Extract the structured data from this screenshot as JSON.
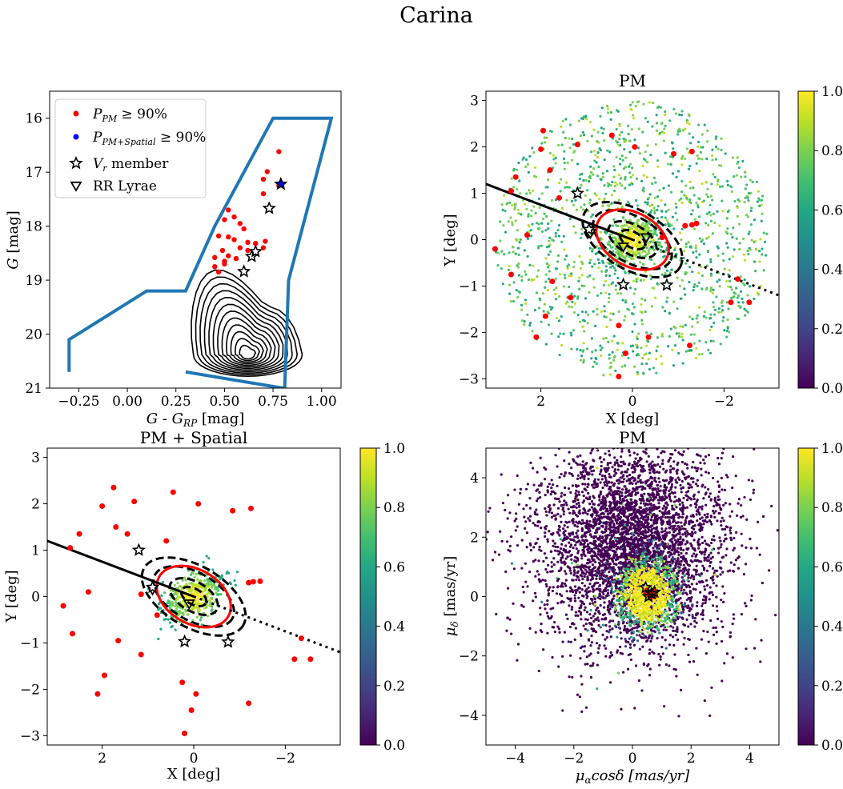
{
  "figure": {
    "title": "Carina"
  },
  "colorbar": {
    "ticks": [
      "0.0",
      "0.2",
      "0.4",
      "0.6",
      "0.8",
      "1.0"
    ],
    "colormap": "viridis"
  },
  "colors": {
    "cmd_box": "#1f77b4",
    "member": "#ff0000",
    "member_spatial": "#0000ff",
    "ellipse": "#ff0000",
    "line": "#000000"
  },
  "chart_data": [
    {
      "type": "scatter",
      "panel": "cmd",
      "title": "",
      "xlabel_main": "G - G",
      "xlabel_sub": "RP",
      "xlabel_unit": " [mag]",
      "ylabel_main": "G",
      "ylabel_unit": " [mag]",
      "xlim": [
        -0.4,
        1.1
      ],
      "ylim": [
        21,
        15.5
      ],
      "xticks": [
        -0.25,
        0.0,
        0.25,
        0.5,
        0.75,
        1.0
      ],
      "xtick_labels": [
        "−0.25",
        "0.00",
        "0.25",
        "0.50",
        "0.75",
        "1.00"
      ],
      "yticks": [
        16,
        17,
        18,
        19,
        20,
        21
      ],
      "ytick_labels": [
        "16",
        "17",
        "18",
        "19",
        "20",
        "21"
      ],
      "legend": [
        {
          "label": "P",
          "sub": "PM",
          "tail": " ≥ 90%",
          "marker": "dot",
          "color": "#ff0000"
        },
        {
          "label": "P",
          "sub": "PM+Spatial",
          "tail": " ≥ 90%",
          "marker": "dot",
          "color": "#0000ff"
        },
        {
          "label": "V",
          "sub": "r",
          "tail": " member",
          "marker": "star"
        },
        {
          "label": "RR Lyrae",
          "sub": "",
          "tail": "",
          "marker": "triangle"
        }
      ],
      "selection_box": [
        [
          -0.3,
          20.7
        ],
        [
          -0.3,
          20.1
        ],
        [
          0.1,
          19.2
        ],
        [
          0.3,
          19.2
        ],
        [
          0.45,
          18.0
        ],
        [
          0.75,
          16.0
        ],
        [
          1.05,
          16.0
        ],
        [
          0.83,
          19.0
        ],
        [
          0.81,
          21.0
        ],
        [
          0.8,
          21.0
        ],
        [
          0.3,
          20.7
        ]
      ],
      "members": [
        [
          0.78,
          16.62
        ],
        [
          0.72,
          16.99
        ],
        [
          0.7,
          17.13
        ],
        [
          0.78,
          17.25
        ],
        [
          0.7,
          17.4
        ],
        [
          0.52,
          17.7
        ],
        [
          0.55,
          17.83
        ],
        [
          0.58,
          17.95
        ],
        [
          0.5,
          17.88
        ],
        [
          0.6,
          18.05
        ],
        [
          0.47,
          18.18
        ],
        [
          0.52,
          18.2
        ],
        [
          0.62,
          18.3
        ],
        [
          0.55,
          18.25
        ],
        [
          0.58,
          18.4
        ],
        [
          0.66,
          18.32
        ],
        [
          0.71,
          18.28
        ],
        [
          0.49,
          18.45
        ],
        [
          0.45,
          18.58
        ],
        [
          0.52,
          18.55
        ],
        [
          0.56,
          18.6
        ],
        [
          0.5,
          18.65
        ],
        [
          0.45,
          18.75
        ],
        [
          0.5,
          18.7
        ],
        [
          0.47,
          18.85
        ],
        [
          0.62,
          18.45
        ],
        [
          0.7,
          18.4
        ]
      ],
      "vr_members": [
        [
          0.79,
          17.22
        ],
        [
          0.73,
          17.67
        ],
        [
          0.66,
          18.47
        ],
        [
          0.64,
          18.56
        ],
        [
          0.6,
          18.84
        ]
      ],
      "vr_member_fills": [
        "#0000ff",
        "none",
        "none",
        "none",
        "none"
      ],
      "density_contour_levels": 12,
      "density_center": [
        0.62,
        20.38
      ]
    },
    {
      "type": "scatter",
      "panel": "pm_spatial_sky",
      "title": "PM",
      "xlabel": "X [deg]",
      "ylabel": "Y [deg]",
      "xlim": [
        3.2,
        -3.2
      ],
      "ylim": [
        -3.2,
        3.2
      ],
      "xticks": [
        2,
        0,
        -2
      ],
      "xtick_labels": [
        "2",
        "0",
        "−2"
      ],
      "yticks": [
        -3,
        -2,
        -1,
        0,
        1,
        2,
        3
      ],
      "ytick_labels": [
        "−3",
        "−2",
        "−1",
        "0",
        "1",
        "2",
        "3"
      ],
      "field_radius_deg": 3.0,
      "n_field_points": 1300,
      "color_scale": [
        0,
        1
      ],
      "members": [
        [
          2.0,
          1.95
        ],
        [
          1.95,
          2.35
        ],
        [
          1.8,
          1.5
        ],
        [
          1.2,
          2.05
        ],
        [
          0.45,
          2.25
        ],
        [
          -0.05,
          2.0
        ],
        [
          -0.9,
          1.85
        ],
        [
          -1.3,
          1.9
        ],
        [
          2.65,
          1.05
        ],
        [
          2.55,
          1.35
        ],
        [
          2.3,
          0.1
        ],
        [
          3.0,
          -0.2
        ],
        [
          2.65,
          -0.75
        ],
        [
          1.75,
          -0.9
        ],
        [
          1.9,
          -1.65
        ],
        [
          2.1,
          -2.1
        ],
        [
          1.35,
          -1.25
        ],
        [
          0.3,
          -1.85
        ],
        [
          0.15,
          -2.45
        ],
        [
          0.3,
          -2.95
        ],
        [
          -0.35,
          -2.1
        ],
        [
          -1.25,
          -2.28
        ],
        [
          -2.15,
          -1.35
        ],
        [
          -2.3,
          -0.85
        ],
        [
          -2.55,
          -1.35
        ],
        [
          -1.15,
          0.3
        ],
        [
          -1.3,
          0.32
        ],
        [
          -1.4,
          0.35
        ],
        [
          1.6,
          0.9
        ],
        [
          -0.65,
          0.05
        ]
      ],
      "vr_members": [
        [
          1.2,
          1.0
        ],
        [
          0.95,
          0.22
        ],
        [
          0.2,
          -0.97
        ],
        [
          -0.75,
          -0.98
        ]
      ],
      "rr_lyrae": [
        [
          0.92,
          0.14
        ],
        [
          0.2,
          -0.15
        ],
        [
          -0.3,
          0.05
        ]
      ],
      "ellipses": [
        {
          "a": 1.2,
          "b": 0.65,
          "pa_deg": -30,
          "style": "dashed",
          "color": "#000000"
        },
        {
          "a": 0.95,
          "b": 0.5,
          "pa_deg": -30,
          "style": "dashed",
          "color": "#000000"
        },
        {
          "a": 0.85,
          "b": 0.58,
          "pa_deg": -30,
          "style": "solid",
          "color": "#ff0000"
        },
        {
          "a": 0.58,
          "b": 0.32,
          "pa_deg": -30,
          "style": "dashed",
          "color": "#000000"
        },
        {
          "a": 0.3,
          "b": 0.17,
          "pa_deg": -30,
          "style": "dashed",
          "color": "#000000"
        }
      ],
      "trail_solid": [
        [
          3.2,
          1.2
        ],
        [
          0.0,
          0.0
        ]
      ],
      "trail_dotted": [
        [
          0.0,
          0.0
        ],
        [
          -3.2,
          -1.2
        ]
      ]
    },
    {
      "type": "scatter",
      "panel": "pm_spatial_combined",
      "title": "PM + Spatial",
      "xlabel": "X [deg]",
      "ylabel": "Y [deg]",
      "xlim": [
        3.2,
        -3.2
      ],
      "ylim": [
        -3.2,
        3.2
      ],
      "xticks": [
        2,
        0,
        -2
      ],
      "xtick_labels": [
        "2",
        "0",
        "−2"
      ],
      "yticks": [
        -3,
        -2,
        -1,
        0,
        1,
        2,
        3
      ],
      "ytick_labels": [
        "−3",
        "−2",
        "−1",
        "0",
        "1",
        "2",
        "3"
      ],
      "color_scale": [
        0,
        1
      ],
      "members": [
        [
          1.75,
          2.35
        ],
        [
          2.0,
          1.95
        ],
        [
          1.3,
          2.05
        ],
        [
          0.45,
          2.25
        ],
        [
          -0.1,
          2.0
        ],
        [
          -0.85,
          1.85
        ],
        [
          -1.25,
          1.9
        ],
        [
          1.7,
          1.5
        ],
        [
          1.45,
          1.35
        ],
        [
          0.6,
          1.2
        ],
        [
          2.5,
          1.35
        ],
        [
          2.7,
          1.05
        ],
        [
          2.3,
          0.1
        ],
        [
          2.85,
          -0.2
        ],
        [
          2.65,
          -0.8
        ],
        [
          1.65,
          -0.95
        ],
        [
          1.95,
          -1.7
        ],
        [
          2.1,
          -2.1
        ],
        [
          1.15,
          -1.25
        ],
        [
          0.25,
          -1.85
        ],
        [
          0.05,
          -2.45
        ],
        [
          0.2,
          -2.95
        ],
        [
          -0.05,
          -2.1
        ],
        [
          -1.2,
          -2.3
        ],
        [
          -2.2,
          -1.35
        ],
        [
          -2.35,
          -0.9
        ],
        [
          -2.55,
          -1.35
        ],
        [
          -1.2,
          0.3
        ],
        [
          -1.3,
          0.32
        ],
        [
          -1.45,
          0.33
        ],
        [
          1.15,
          0.05
        ],
        [
          0.8,
          -0.4
        ]
      ],
      "vr_members": [
        [
          1.2,
          1.0
        ],
        [
          0.9,
          0.2
        ],
        [
          0.2,
          -0.97
        ],
        [
          -0.75,
          -0.98
        ]
      ],
      "rr_lyrae": [
        [
          0.9,
          0.15
        ],
        [
          0.1,
          -0.15
        ]
      ],
      "ellipses": [
        {
          "a": 1.25,
          "b": 0.67,
          "pa_deg": -30,
          "style": "dashed",
          "color": "#000000"
        },
        {
          "a": 0.97,
          "b": 0.52,
          "pa_deg": -30,
          "style": "dashed",
          "color": "#000000"
        },
        {
          "a": 0.87,
          "b": 0.59,
          "pa_deg": -30,
          "style": "solid",
          "color": "#ff0000"
        },
        {
          "a": 0.58,
          "b": 0.32,
          "pa_deg": -30,
          "style": "dashed",
          "color": "#000000"
        },
        {
          "a": 0.3,
          "b": 0.17,
          "pa_deg": -30,
          "style": "dashed",
          "color": "#000000"
        }
      ],
      "trail_solid": [
        [
          3.2,
          1.2
        ],
        [
          0.0,
          0.0
        ]
      ],
      "trail_dotted": [
        [
          0.0,
          0.0
        ],
        [
          -3.2,
          -1.2
        ]
      ]
    },
    {
      "type": "scatter",
      "panel": "proper_motion",
      "title": "PM",
      "xlabel_main": "μ",
      "xlabel_sub": "α",
      "xlabel_rest": "cosδ [mas/yr]",
      "ylabel_main": "μ",
      "ylabel_sub": "δ",
      "ylabel_rest": " [mas/yr]",
      "xlim": [
        -5,
        5
      ],
      "ylim": [
        -5,
        5
      ],
      "xticks": [
        -4,
        -2,
        0,
        2,
        4
      ],
      "xtick_labels": [
        "−4",
        "−2",
        "0",
        "2",
        "4"
      ],
      "yticks": [
        -4,
        -2,
        0,
        2,
        4
      ],
      "ytick_labels": [
        "−4",
        "−2",
        "0",
        "2",
        "4"
      ],
      "field_center": [
        0.0,
        1.8
      ],
      "field_spread": [
        1.6,
        1.7
      ],
      "n_field_points": 4200,
      "cluster_center": [
        0.5,
        0.1
      ],
      "cluster_spread": [
        0.55,
        0.65
      ],
      "n_cluster_points": 1100,
      "color_scale": [
        0,
        1
      ],
      "members": [
        [
          0.65,
          0.12
        ],
        [
          0.55,
          0.05
        ],
        [
          0.7,
          0.2
        ],
        [
          0.5,
          0.22
        ],
        [
          0.75,
          0.0
        ],
        [
          0.6,
          -0.05
        ],
        [
          0.45,
          0.1
        ]
      ],
      "vr_members": [
        [
          0.45,
          0.3
        ],
        [
          0.65,
          0.1
        ],
        [
          0.55,
          0.0
        ],
        [
          0.75,
          0.15
        ]
      ]
    }
  ]
}
